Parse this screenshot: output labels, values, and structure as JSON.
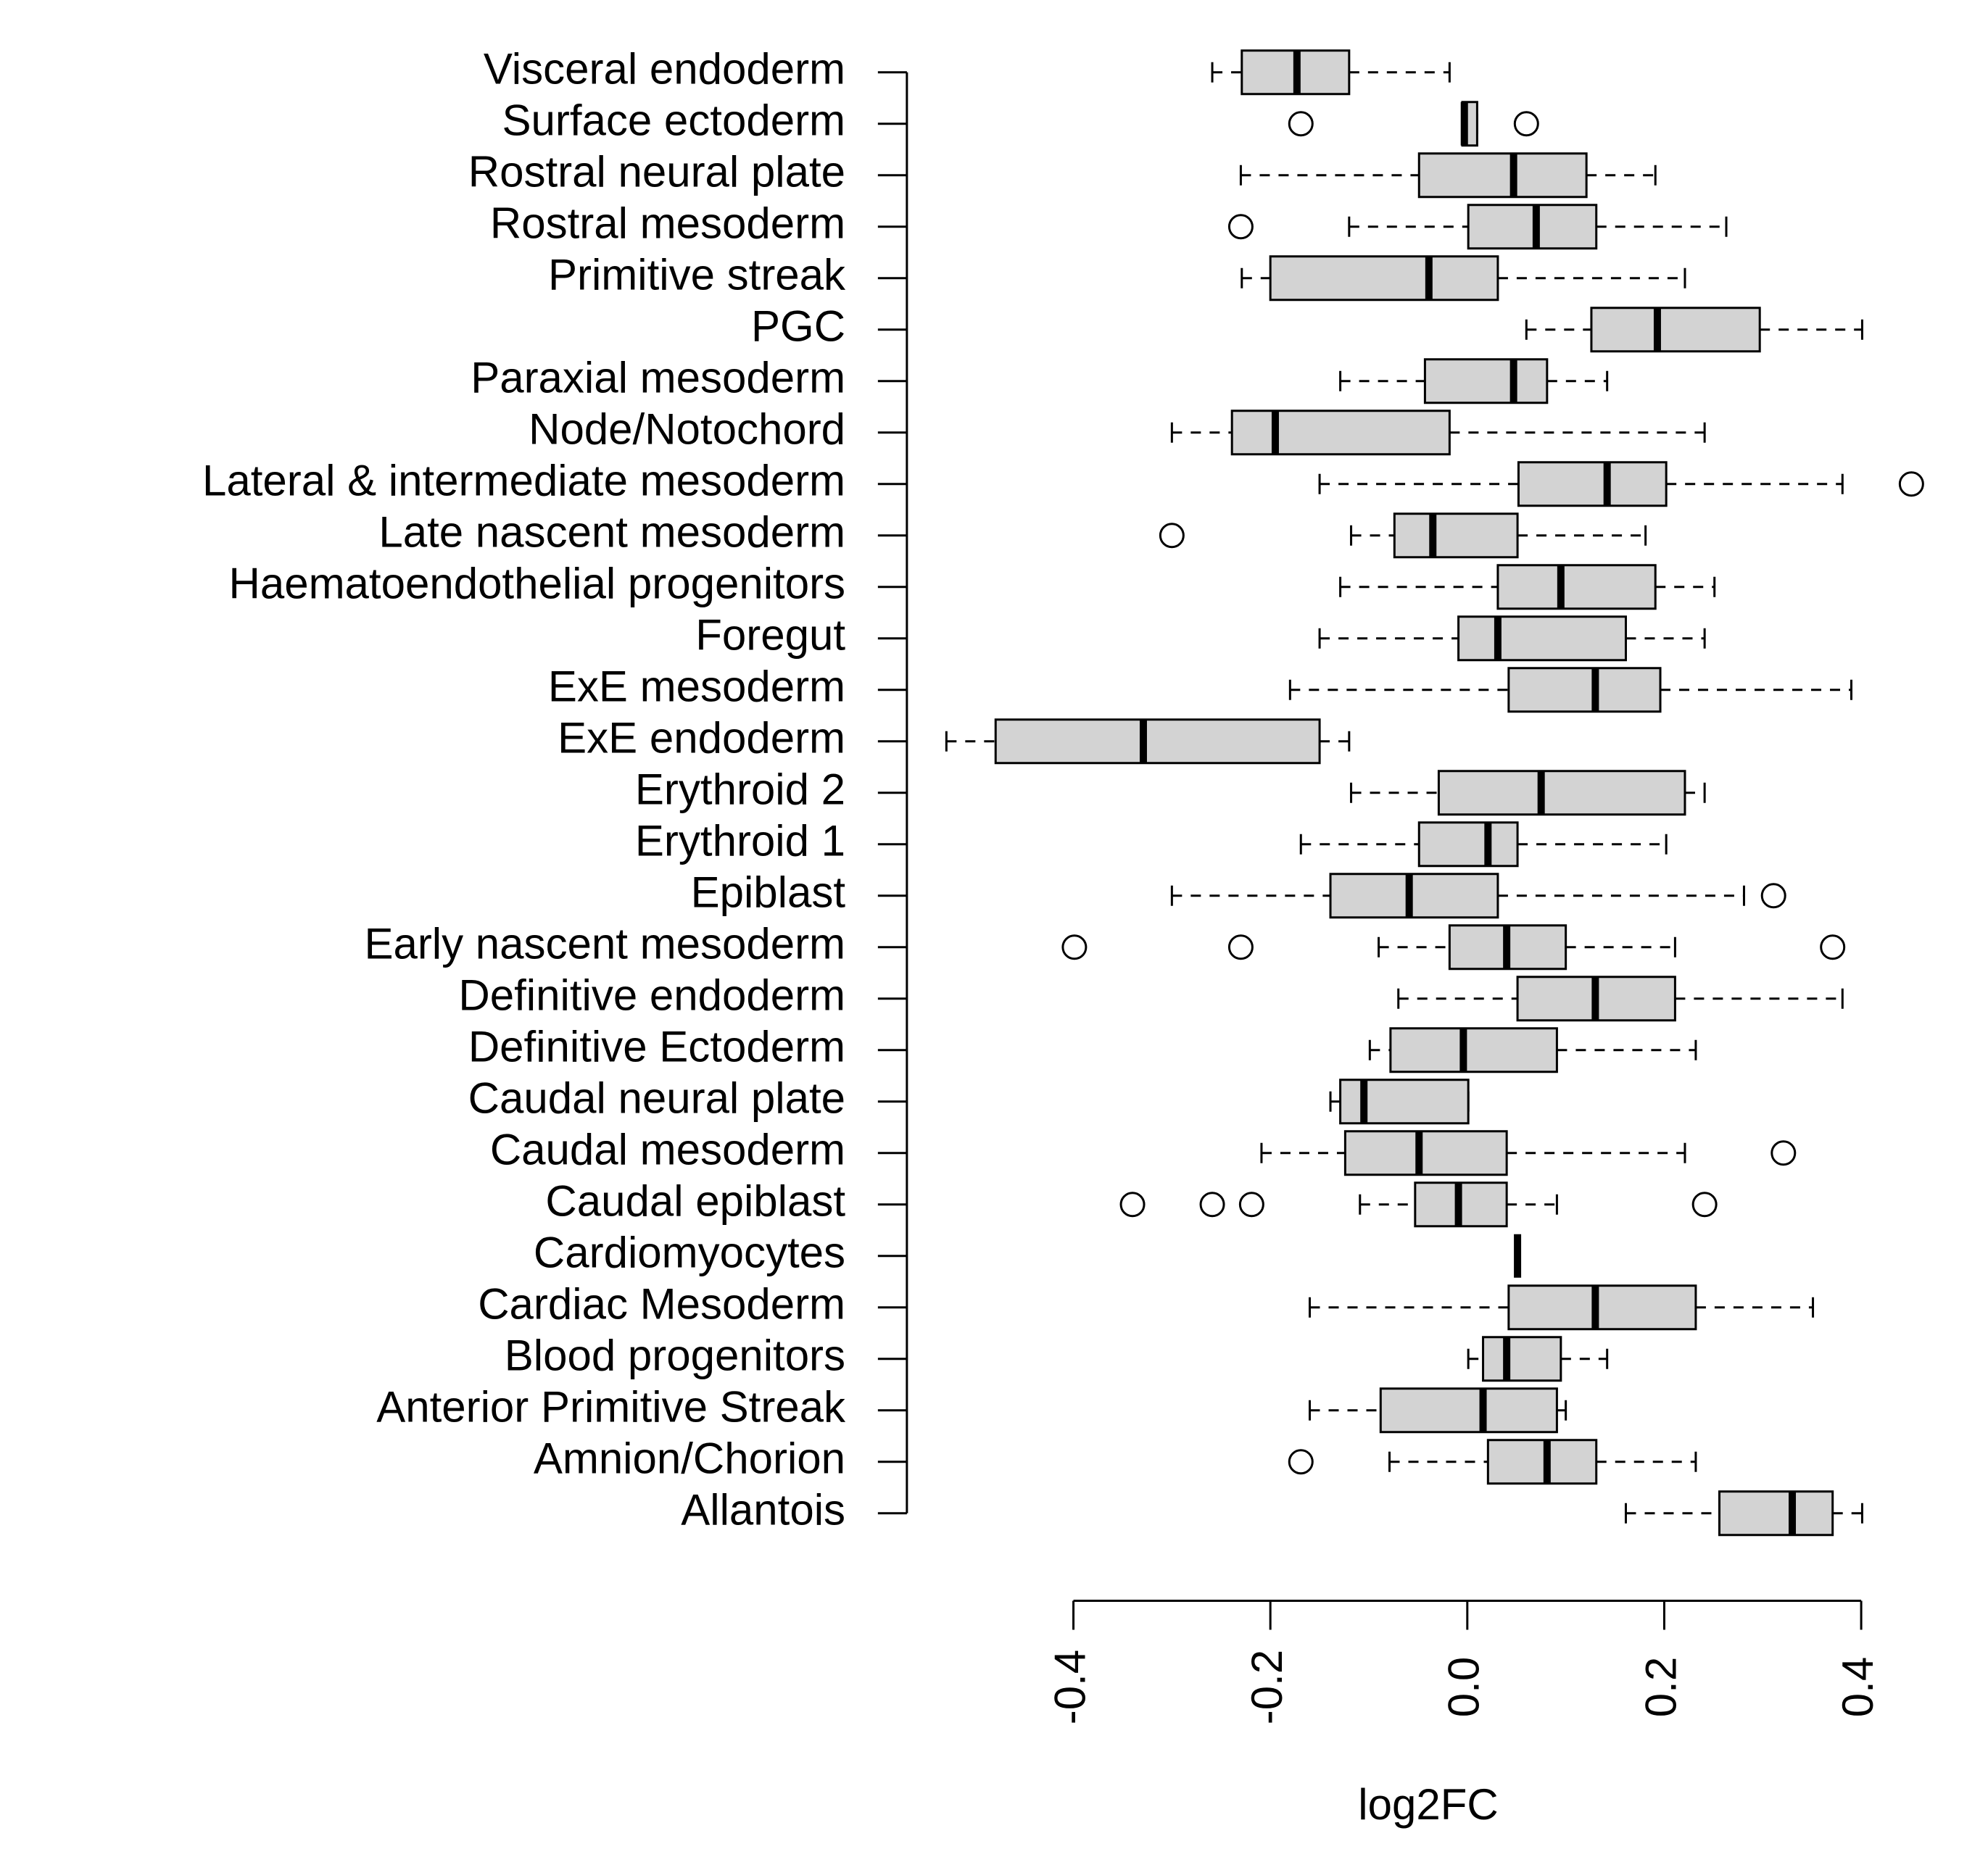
{
  "chart_data": {
    "type": "boxplot",
    "xlabel": "log2FC",
    "xlim": [
      -0.4,
      0.4
    ],
    "xticks": [
      -0.4,
      -0.2,
      {
        "value": 0,
        "label": "0.0"
      },
      0.2,
      0.4
    ],
    "color": "#d3d3d3",
    "categories": [
      "Visceral endoderm",
      "Surface ectoderm",
      "Rostral neural plate",
      "Rostral mesoderm",
      "Primitive streak",
      "PGC",
      "Paraxial mesoderm",
      "Node/Notochord",
      "Lateral & intermediate mesoderm",
      "Late nascent mesoderm",
      "Haematoendothelial progenitors",
      "Foregut",
      "ExE mesoderm",
      "ExE endoderm",
      "Erythroid 2",
      "Erythroid 1",
      "Epiblast",
      "Early nascent mesoderm",
      "Definitive endoderm",
      "Definitive Ectoderm",
      "Caudal neural plate",
      "Caudal mesoderm",
      "Caudal epiblast",
      "Cardiomyocytes",
      "Cardiac Mesoderm",
      "Blood progenitors",
      "Anterior Primitive Streak",
      "Amnion/Chorion",
      "Allantois"
    ],
    "boxes": [
      {
        "low": -0.259,
        "q1": -0.229,
        "median": -0.173,
        "q3": -0.12,
        "high": -0.018,
        "outliers": []
      },
      {
        "low": -0.005,
        "q1": -0.005,
        "median": -0.003,
        "q3": 0.01,
        "high": 0.01,
        "outliers": [
          -0.169,
          0.06
        ]
      },
      {
        "low": -0.23,
        "q1": -0.049,
        "median": 0.047,
        "q3": 0.121,
        "high": 0.191,
        "outliers": []
      },
      {
        "low": -0.12,
        "q1": 0.001,
        "median": 0.07,
        "q3": 0.131,
        "high": 0.263,
        "outliers": [
          -0.23
        ]
      },
      {
        "low": -0.229,
        "q1": -0.2,
        "median": -0.039,
        "q3": 0.031,
        "high": 0.221,
        "outliers": []
      },
      {
        "low": 0.06,
        "q1": 0.126,
        "median": 0.193,
        "q3": 0.297,
        "high": 0.401,
        "outliers": []
      },
      {
        "low": -0.129,
        "q1": -0.043,
        "median": 0.047,
        "q3": 0.081,
        "high": 0.142,
        "outliers": []
      },
      {
        "low": -0.3,
        "q1": -0.239,
        "median": -0.195,
        "q3": -0.018,
        "high": 0.241,
        "outliers": []
      },
      {
        "low": -0.15,
        "q1": 0.052,
        "median": 0.142,
        "q3": 0.202,
        "high": 0.381,
        "outliers": [
          0.451
        ]
      },
      {
        "low": -0.118,
        "q1": -0.074,
        "median": -0.035,
        "q3": 0.051,
        "high": 0.181,
        "outliers": [
          -0.3
        ]
      },
      {
        "low": -0.129,
        "q1": 0.031,
        "median": 0.095,
        "q3": 0.191,
        "high": 0.251,
        "outliers": []
      },
      {
        "low": -0.15,
        "q1": -0.009,
        "median": 0.031,
        "q3": 0.161,
        "high": 0.241,
        "outliers": []
      },
      {
        "low": -0.18,
        "q1": 0.042,
        "median": 0.13,
        "q3": 0.196,
        "high": 0.39,
        "outliers": []
      },
      {
        "low": -0.529,
        "q1": -0.479,
        "median": -0.329,
        "q3": -0.15,
        "high": -0.12,
        "outliers": []
      },
      {
        "low": -0.118,
        "q1": -0.029,
        "median": 0.075,
        "q3": 0.221,
        "high": 0.241,
        "outliers": []
      },
      {
        "low": -0.169,
        "q1": -0.049,
        "median": 0.021,
        "q3": 0.051,
        "high": 0.202,
        "outliers": []
      },
      {
        "low": -0.3,
        "q1": -0.139,
        "median": -0.059,
        "q3": 0.031,
        "high": 0.281,
        "outliers": [
          0.311
        ]
      },
      {
        "low": -0.09,
        "q1": -0.018,
        "median": 0.04,
        "q3": 0.1,
        "high": 0.211,
        "outliers": [
          -0.399,
          -0.23,
          0.371
        ]
      },
      {
        "low": -0.07,
        "q1": 0.051,
        "median": 0.13,
        "q3": 0.211,
        "high": 0.381,
        "outliers": []
      },
      {
        "low": -0.099,
        "q1": -0.078,
        "median": -0.004,
        "q3": 0.091,
        "high": 0.232,
        "outliers": []
      },
      {
        "low": -0.139,
        "q1": -0.129,
        "median": -0.105,
        "q3": 0.001,
        "high": 0.001,
        "outliers": []
      },
      {
        "low": -0.209,
        "q1": -0.124,
        "median": -0.049,
        "q3": 0.04,
        "high": 0.221,
        "outliers": [
          0.321
        ]
      },
      {
        "low": -0.109,
        "q1": -0.053,
        "median": -0.009,
        "q3": 0.04,
        "high": 0.091,
        "outliers": [
          -0.34,
          -0.259,
          -0.219,
          0.241
        ]
      },
      {
        "low": 0.051,
        "q1": 0.051,
        "median": 0.051,
        "q3": 0.051,
        "high": 0.051,
        "outliers": []
      },
      {
        "low": -0.16,
        "q1": 0.042,
        "median": 0.13,
        "q3": 0.232,
        "high": 0.351,
        "outliers": []
      },
      {
        "low": 0.001,
        "q1": 0.016,
        "median": 0.04,
        "q3": 0.095,
        "high": 0.142,
        "outliers": []
      },
      {
        "low": -0.16,
        "q1": -0.088,
        "median": 0.016,
        "q3": 0.091,
        "high": 0.1,
        "outliers": []
      },
      {
        "low": -0.079,
        "q1": 0.021,
        "median": 0.081,
        "q3": 0.131,
        "high": 0.232,
        "outliers": [
          -0.169
        ]
      },
      {
        "low": 0.161,
        "q1": 0.256,
        "median": 0.33,
        "q3": 0.371,
        "high": 0.401,
        "outliers": []
      }
    ]
  }
}
